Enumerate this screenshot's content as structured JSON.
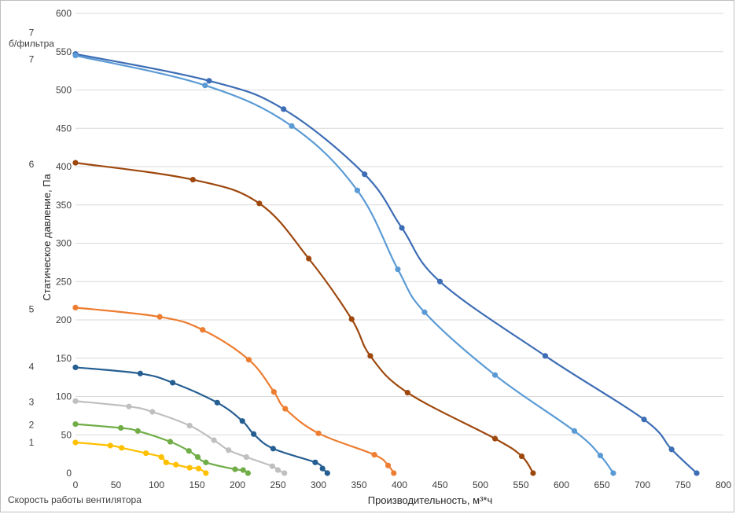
{
  "chart_data": {
    "type": "line",
    "xlabel": "Производительность, м³*ч",
    "ylabel": "Статическое давление, Па",
    "speed_axis_label": "Скорость работы вентилятора",
    "xlim": [
      0,
      800
    ],
    "ylim": [
      0,
      600
    ],
    "xticks": [
      0,
      50,
      100,
      150,
      200,
      250,
      300,
      350,
      400,
      450,
      500,
      550,
      600,
      650,
      700,
      750,
      800
    ],
    "yticks": [
      0,
      50,
      100,
      150,
      200,
      250,
      300,
      350,
      400,
      450,
      500,
      550,
      600
    ],
    "grid": "horizontal",
    "legend": "none",
    "speed_labels": [
      {
        "text": "7\nб/фильтра",
        "y": 575
      },
      {
        "text": "7",
        "y": 540
      },
      {
        "text": "6",
        "y": 403
      },
      {
        "text": "5",
        "y": 214
      },
      {
        "text": "4",
        "y": 139
      },
      {
        "text": "3",
        "y": 93
      },
      {
        "text": "2",
        "y": 63
      },
      {
        "text": "1",
        "y": 40
      }
    ],
    "series": [
      {
        "color": "#3d6db5",
        "points": [
          [
            0,
            547
          ],
          [
            165,
            512
          ],
          [
            257,
            475
          ],
          [
            357,
            390
          ],
          [
            403,
            320
          ],
          [
            450,
            250
          ],
          [
            580,
            153
          ],
          [
            702,
            70
          ],
          [
            736,
            31
          ],
          [
            767,
            0
          ]
        ]
      },
      {
        "color": "#5b9bd5",
        "points": [
          [
            0,
            545
          ],
          [
            160,
            506
          ],
          [
            267,
            453
          ],
          [
            348,
            369
          ],
          [
            398,
            266
          ],
          [
            431,
            210
          ],
          [
            518,
            128
          ],
          [
            616,
            55
          ],
          [
            648,
            23
          ],
          [
            664,
            0
          ]
        ]
      },
      {
        "color": "#9e480e",
        "points": [
          [
            0,
            405
          ],
          [
            145,
            383
          ],
          [
            227,
            352
          ],
          [
            288,
            280
          ],
          [
            341,
            201
          ],
          [
            364,
            153
          ],
          [
            410,
            105
          ],
          [
            518,
            45
          ],
          [
            551,
            22
          ],
          [
            565,
            0
          ]
        ]
      },
      {
        "color": "#ed7d31",
        "points": [
          [
            0,
            216
          ],
          [
            104,
            204
          ],
          [
            157,
            187
          ],
          [
            214,
            148
          ],
          [
            245,
            106
          ],
          [
            259,
            84
          ],
          [
            300,
            52
          ],
          [
            369,
            24
          ],
          [
            386,
            10
          ],
          [
            393,
            0
          ]
        ]
      },
      {
        "color": "#255e91",
        "points": [
          [
            0,
            138
          ],
          [
            80,
            130
          ],
          [
            120,
            118
          ],
          [
            175,
            92
          ],
          [
            206,
            68
          ],
          [
            220,
            51
          ],
          [
            244,
            32
          ],
          [
            296,
            14
          ],
          [
            305,
            6
          ],
          [
            311,
            0
          ]
        ]
      },
      {
        "color": "#bfbfbf",
        "points": [
          [
            0,
            94
          ],
          [
            66,
            87
          ],
          [
            95,
            80
          ],
          [
            141,
            62
          ],
          [
            171,
            43
          ],
          [
            189,
            30
          ],
          [
            211,
            21
          ],
          [
            243,
            9
          ],
          [
            250,
            4
          ],
          [
            258,
            0
          ]
        ]
      },
      {
        "color": "#70ad47",
        "points": [
          [
            0,
            64
          ],
          [
            56,
            59
          ],
          [
            77,
            55
          ],
          [
            117,
            41
          ],
          [
            140,
            29
          ],
          [
            151,
            21
          ],
          [
            161,
            14
          ],
          [
            197,
            5
          ],
          [
            207,
            4
          ],
          [
            213,
            0
          ]
        ]
      },
      {
        "color": "#ffc000",
        "points": [
          [
            0,
            40
          ],
          [
            43,
            36
          ],
          [
            57,
            33
          ],
          [
            87,
            26
          ],
          [
            106,
            21
          ],
          [
            112,
            14
          ],
          [
            124,
            11
          ],
          [
            141,
            7
          ],
          [
            152,
            6
          ],
          [
            161,
            0
          ]
        ]
      }
    ]
  }
}
